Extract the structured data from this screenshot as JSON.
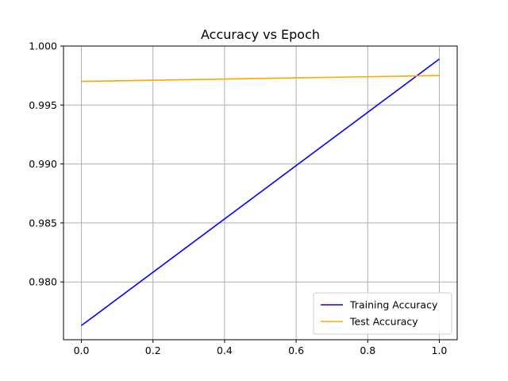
{
  "chart_data": {
    "type": "line",
    "title": "Accuracy vs Epoch",
    "xlabel": "",
    "ylabel": "",
    "x": [
      0,
      1
    ],
    "xlim": [
      -0.05,
      1.05
    ],
    "ylim": [
      0.9751,
      1.0
    ],
    "x_ticks": [
      0.0,
      0.2,
      0.4,
      0.6,
      0.8,
      1.0
    ],
    "x_tick_labels": [
      "0.0",
      "0.2",
      "0.4",
      "0.6",
      "0.8",
      "1.0"
    ],
    "y_ticks": [
      0.98,
      0.985,
      0.99,
      0.995,
      1.0
    ],
    "y_tick_labels": [
      "0.980",
      "0.985",
      "0.990",
      "0.995",
      "1.000"
    ],
    "grid": true,
    "legend_position": "bottom-right",
    "series": [
      {
        "name": "Training Accuracy",
        "color": "#0000ff",
        "values": [
          0.9763,
          0.9989
        ]
      },
      {
        "name": "Test Accuracy",
        "color": "#ffa500",
        "values": [
          0.997,
          0.9975
        ]
      }
    ]
  }
}
